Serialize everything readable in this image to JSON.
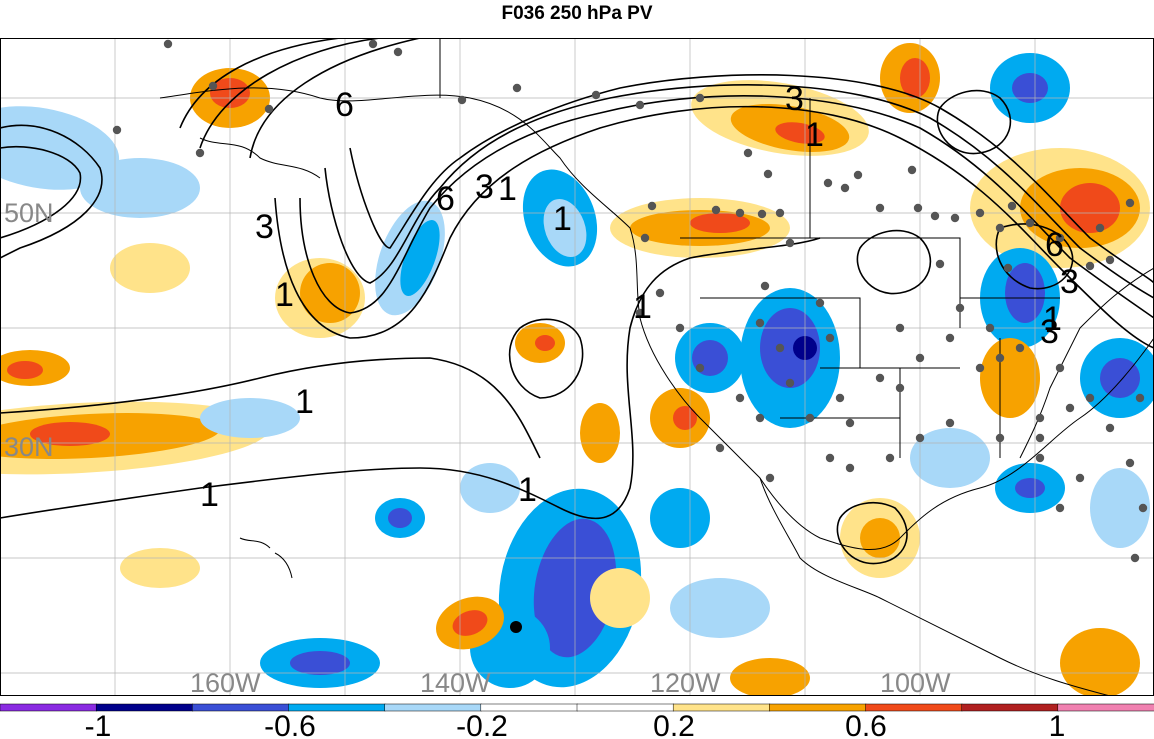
{
  "title": "F036 250 hPa PV",
  "map": {
    "latitude_labels": [
      "50N",
      "30N"
    ],
    "longitude_labels": [
      "160W",
      "140W",
      "120W",
      "100W"
    ],
    "contour_labels": [
      "6",
      "3",
      "1",
      "6",
      "3",
      "1",
      "1",
      "1",
      "3",
      "1",
      "1",
      "1",
      "1",
      "3",
      "6",
      "3",
      "1"
    ]
  },
  "colorbar": {
    "colors": [
      "#8a2be2",
      "#00008b",
      "#3a4fd6",
      "#00aaf0",
      "#a8d8f8",
      "#ffffff",
      "#ffffff",
      "#ffe38a",
      "#f7a200",
      "#f04a1a",
      "#b02020",
      "#f080b0"
    ],
    "tick_labels": [
      "-1",
      "-0.6",
      "-0.2",
      "0.2",
      "0.6",
      "1"
    ]
  },
  "colors": {
    "station_dot": "#555555",
    "contour": "#000000",
    "coastline": "#000000",
    "grid": "#aaaaaa",
    "axis_label": "#888888"
  }
}
